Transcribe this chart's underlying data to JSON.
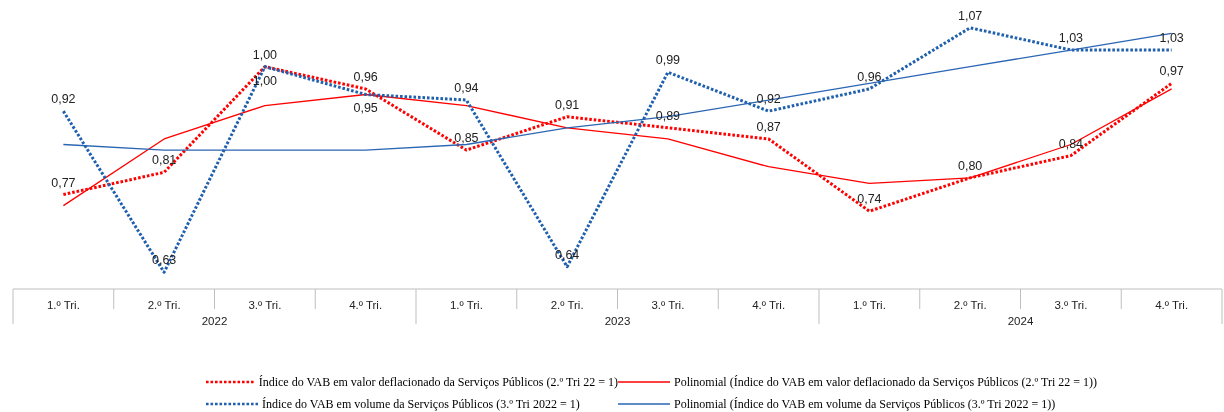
{
  "chart_data": {
    "type": "line",
    "categories": [
      "1.º Tri.",
      "2.º Tri.",
      "3.º Tri.",
      "4.º Tri.",
      "1.º Tri.",
      "2.º Tri.",
      "3.º Tri.",
      "4.º Tri.",
      "1.º Tri.",
      "2.º Tri.",
      "3.º Tri.",
      "4.º Tri."
    ],
    "annotations": [
      "2022",
      "2023",
      "2024"
    ],
    "series": [
      {
        "name": "Índice do VAB em valor deflacionado da Serviços Públicos (2.º Tri 22 = 1)",
        "color": "#ff0000",
        "line_style": "dotted",
        "values": [
          0.77,
          0.81,
          1.0,
          0.96,
          0.85,
          0.91,
          0.89,
          0.87,
          0.74,
          0.8,
          0.84,
          0.97
        ],
        "value_labels": [
          "0,77",
          "0,81",
          "1,00",
          "0,96",
          "0,85",
          "0,91",
          "0,89",
          "0,87",
          "0,74",
          "0,80",
          "0,84",
          "0,97"
        ]
      },
      {
        "name": "Polinomial (Índice do VAB em valor deflacionado da Serviços Públicos (2.º Tri 22 = 1))",
        "color": "#ff0000",
        "line_style": "solid",
        "values": [
          0.75,
          0.87,
          0.93,
          0.95,
          0.93,
          0.89,
          0.87,
          0.82,
          0.79,
          0.8,
          0.86,
          0.96
        ]
      },
      {
        "name": "Índice do VAB em volume da Serviços Públicos (3.º Tri 2022 = 1)",
        "color": "#1f5fad",
        "line_style": "dotted",
        "values": [
          0.92,
          0.63,
          1.0,
          0.95,
          0.94,
          0.64,
          0.99,
          0.92,
          0.96,
          1.07,
          1.03,
          1.03
        ],
        "value_labels": [
          "0,92",
          "0,63",
          "1,00",
          "0,95",
          "0,94",
          "0,64",
          "0,99",
          "0,92",
          "0,96",
          "1,07",
          "1,03",
          "1,03"
        ]
      },
      {
        "name": "Polinomial (Índice do VAB em volume da Serviços Públicos (3.º Tri 2022 = 1))",
        "color": "#2a66b3",
        "line_style": "solid",
        "values": [
          0.86,
          0.85,
          0.85,
          0.85,
          0.86,
          0.89,
          0.91,
          0.94,
          0.97,
          1.0,
          1.03,
          1.06
        ]
      }
    ],
    "ylim": [
      0.6,
      1.12
    ],
    "tick_labels": "x",
    "legend": "bottom",
    "marker": "none"
  }
}
